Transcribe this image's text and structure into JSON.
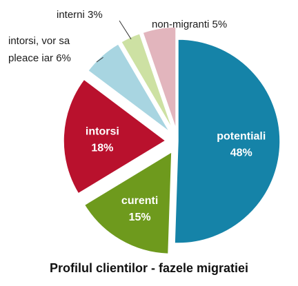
{
  "chart_data": {
    "type": "pie",
    "title": "Profilul clientilor - fazele migratiei",
    "slices": [
      {
        "name": "potentiali",
        "value": 48,
        "label": "48%",
        "color": "#1583a8",
        "label_position": "inside",
        "exploded": false
      },
      {
        "name": "curenti",
        "value": 15,
        "label": "15%",
        "color": "#6e9a1d",
        "label_position": "inside",
        "exploded": true
      },
      {
        "name": "intorsi",
        "value": 18,
        "label": "18%",
        "color": "#b9112d",
        "label_position": "inside",
        "exploded": true
      },
      {
        "name": "intorsi, vor sa pleace iar",
        "value": 6,
        "label": "6%",
        "color": "#a8d5e1",
        "label_position": "outside",
        "exploded": true
      },
      {
        "name": "interni",
        "value": 3,
        "label": "3%",
        "color": "#cde1a3",
        "label_position": "outside",
        "exploded": true
      },
      {
        "name": "non-migranti",
        "value": 5,
        "label": "5%",
        "color": "#e2b5bd",
        "label_position": "outside",
        "exploded": true
      }
    ],
    "start_angle_deg": 0,
    "direction": "clockwise",
    "legend": "none"
  }
}
